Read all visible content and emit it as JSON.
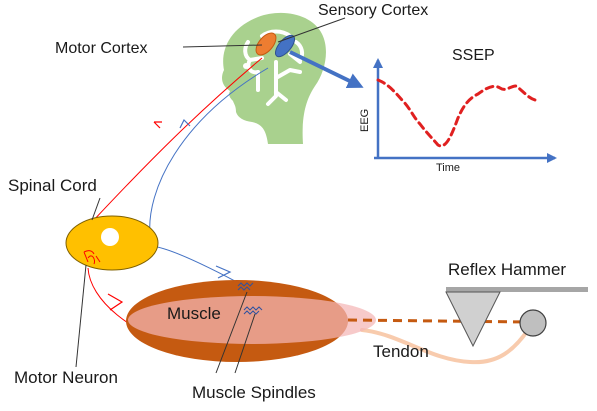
{
  "labels": {
    "sensory_cortex": "Sensory Cortex",
    "motor_cortex": "Motor Cortex",
    "ssep": "SSEP",
    "eeg_axis": "EEG",
    "time_axis": "Time",
    "spinal_cord": "Spinal Cord",
    "reflex_hammer": "Reflex Hammer",
    "muscle": "Muscle",
    "tendon": "Tendon",
    "motor_neuron": "Motor Neuron",
    "muscle_spindles": "Muscle Spindles"
  },
  "colors": {
    "head": "#a9d18e",
    "brain_lines": "#ffffff",
    "motor_cortex": "#ed7d31",
    "sensory_cortex": "#4472c4",
    "eeg_trace": "#e02020",
    "axes": "#4472c4",
    "spinal_cord_fill": "#ffc000",
    "spinal_cord_stroke": "#7f6000",
    "muscle": "#c55a11",
    "muscle_overlay": "#f4b6b6",
    "tendon": "#f8cbad",
    "tendon_dashed": "#c55a11",
    "hammer_head": "#d0d0d0",
    "hammer_handle": "#a6a6a6",
    "motor_path": "#ff0000",
    "sensory_path": "#4472c4"
  },
  "icons": {
    "eeg_plot": "ssep-waveform",
    "hammer": "reflex-hammer-icon"
  }
}
